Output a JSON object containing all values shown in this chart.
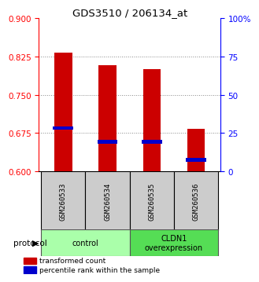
{
  "title": "GDS3510 / 206134_at",
  "samples": [
    "GSM260533",
    "GSM260534",
    "GSM260535",
    "GSM260536"
  ],
  "bar_bottoms": [
    0.6,
    0.6,
    0.6,
    0.6
  ],
  "bar_tops": [
    0.833,
    0.808,
    0.8,
    0.683
  ],
  "percentile_values": [
    0.685,
    0.658,
    0.658,
    0.622
  ],
  "ylim_left": [
    0.6,
    0.9
  ],
  "ylim_right": [
    0,
    100
  ],
  "yticks_left": [
    0.6,
    0.675,
    0.75,
    0.825,
    0.9
  ],
  "yticks_right": [
    0,
    25,
    50,
    75,
    100
  ],
  "ytick_labels_right": [
    "0",
    "25",
    "50",
    "75",
    "100%"
  ],
  "groups": [
    {
      "label": "control",
      "samples": [
        0,
        1
      ],
      "color": "#aaffaa"
    },
    {
      "label": "CLDN1\noverexpression",
      "samples": [
        2,
        3
      ],
      "color": "#55dd55"
    }
  ],
  "bar_color": "#cc0000",
  "marker_color": "#0000cc",
  "grid_color": "#888888",
  "background_color": "#ffffff",
  "sample_box_color": "#cccccc",
  "legend_red_label": "transformed count",
  "legend_blue_label": "percentile rank within the sample",
  "protocol_label": "protocol"
}
